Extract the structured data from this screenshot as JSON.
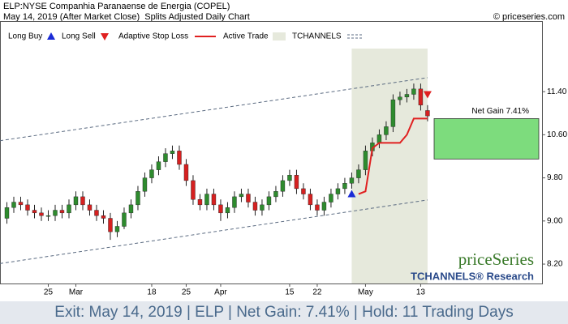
{
  "chart_data": {
    "type": "candlestick",
    "title": "ELP:NYSE Companhia Paranaense de Energia (COPEL)",
    "subtitle": "May 14, 2019 (After Market Close)  Splits Adjusted Daily Chart",
    "source": "© priceseries.com",
    "legend": [
      "Long Buy",
      "Long Sell",
      "Adaptive Stop Loss",
      "Active Trade",
      "TCHANNELS"
    ],
    "watermark": "priceSeries",
    "watermark_sub": "TCHANNELS® Research",
    "footer": "Exit: May 14, 2019 | ELP | Net Gain: 7.41% | Hold: 11 Trading Days",
    "net_gain_label": "Net Gain 7.41%",
    "up_color": "#2e8b2e",
    "down_color": "#d62020",
    "xlim": [
      -1,
      77.6
    ],
    "ylim": [
      7.84,
      12.71
    ],
    "xticks": [
      {
        "value": 6,
        "label": "25"
      },
      {
        "value": 10,
        "label": "Mar"
      },
      {
        "value": 21,
        "label": "18"
      },
      {
        "value": 26,
        "label": "25"
      },
      {
        "value": 31,
        "label": "Apr"
      },
      {
        "value": 41,
        "label": "15"
      },
      {
        "value": 45,
        "label": "22"
      },
      {
        "value": 52,
        "label": "May"
      },
      {
        "value": 60,
        "label": "13"
      }
    ],
    "yticks": [
      {
        "value": 8.2,
        "label": "8.20"
      },
      {
        "value": 9.0,
        "label": "9.00"
      },
      {
        "value": 9.8,
        "label": "9.80"
      },
      {
        "value": 10.6,
        "label": "10.60"
      },
      {
        "value": 11.4,
        "label": "11.40"
      }
    ],
    "open": [
      9.05,
      9.25,
      9.35,
      9.3,
      9.2,
      9.15,
      9.1,
      9.1,
      9.2,
      9.15,
      9.3,
      9.45,
      9.3,
      9.2,
      9.1,
      9.05,
      8.8,
      8.9,
      9.15,
      9.3,
      9.55,
      9.8,
      9.95,
      10.1,
      10.25,
      10.3,
      10.05,
      9.75,
      9.4,
      9.3,
      9.5,
      9.3,
      9.15,
      9.25,
      9.45,
      9.5,
      9.35,
      9.2,
      9.3,
      9.45,
      9.55,
      9.75,
      9.85,
      9.6,
      9.5,
      9.3,
      9.2,
      9.35,
      9.5,
      9.6,
      9.7,
      9.8,
      9.95,
      10.3,
      10.45,
      10.6,
      10.75,
      11.25,
      11.3,
      11.35,
      11.45,
      11.05
    ],
    "high": [
      9.35,
      9.45,
      9.45,
      9.4,
      9.3,
      9.25,
      9.2,
      9.3,
      9.3,
      9.4,
      9.55,
      9.55,
      9.4,
      9.3,
      9.2,
      9.15,
      9.0,
      9.25,
      9.4,
      9.65,
      9.9,
      10.05,
      10.2,
      10.35,
      10.4,
      10.4,
      10.15,
      9.85,
      9.5,
      9.6,
      9.6,
      9.4,
      9.35,
      9.55,
      9.6,
      9.6,
      9.45,
      9.4,
      9.55,
      9.65,
      9.85,
      9.95,
      9.95,
      9.7,
      9.6,
      9.4,
      9.45,
      9.6,
      9.7,
      9.8,
      9.9,
      10.05,
      10.4,
      10.55,
      10.7,
      10.85,
      11.35,
      11.4,
      11.45,
      11.55,
      11.55,
      11.15
    ],
    "low": [
      8.95,
      9.15,
      9.2,
      9.1,
      9.05,
      9.0,
      9.0,
      9.0,
      9.05,
      9.05,
      9.2,
      9.2,
      9.1,
      9.0,
      8.95,
      8.65,
      8.7,
      8.85,
      9.05,
      9.2,
      9.45,
      9.7,
      9.85,
      10.0,
      10.15,
      9.95,
      9.65,
      9.3,
      9.2,
      9.2,
      9.2,
      9.0,
      9.05,
      9.15,
      9.35,
      9.25,
      9.1,
      9.1,
      9.2,
      9.35,
      9.45,
      9.65,
      9.5,
      9.4,
      9.2,
      9.1,
      9.1,
      9.25,
      9.4,
      9.5,
      9.6,
      9.7,
      9.85,
      10.2,
      10.35,
      10.5,
      10.65,
      11.15,
      11.2,
      11.25,
      11.05,
      10.85
    ],
    "close": [
      9.25,
      9.35,
      9.3,
      9.2,
      9.15,
      9.1,
      9.1,
      9.2,
      9.15,
      9.3,
      9.45,
      9.3,
      9.2,
      9.1,
      9.05,
      8.8,
      8.9,
      9.15,
      9.3,
      9.55,
      9.8,
      9.95,
      10.1,
      10.25,
      10.3,
      10.05,
      9.75,
      9.4,
      9.3,
      9.5,
      9.3,
      9.15,
      9.25,
      9.45,
      9.5,
      9.35,
      9.2,
      9.3,
      9.45,
      9.55,
      9.75,
      9.85,
      9.6,
      9.5,
      9.3,
      9.2,
      9.35,
      9.5,
      9.6,
      9.7,
      9.8,
      9.95,
      10.3,
      10.45,
      10.6,
      10.75,
      11.25,
      11.3,
      11.35,
      11.45,
      11.15,
      10.95
    ],
    "stop_loss": {
      "color": "#e02020",
      "x": [
        51,
        52,
        53,
        54,
        55,
        56,
        57,
        58,
        59,
        60,
        61
      ],
      "values": [
        9.5,
        9.55,
        10.35,
        10.45,
        10.45,
        10.45,
        10.45,
        10.6,
        10.9,
        10.9,
        10.9
      ]
    },
    "channel": {
      "color": "#5a6a80",
      "x": [
        -1,
        61
      ],
      "upper": [
        10.49,
        11.66
      ],
      "lower": [
        8.21,
        9.39
      ]
    },
    "active_trade": {
      "color": "#e6e9dc",
      "start": 50,
      "end": 61,
      "top": 12.2
    },
    "long_buy": {
      "color": "#1a2bd6",
      "x": 50,
      "value": 9.5
    },
    "long_sell": {
      "color": "#e02020",
      "x": 61,
      "value": 11.35
    },
    "net_gain_box": {
      "color": "#7ddc7d",
      "low": 10.15,
      "high": 10.9
    }
  }
}
